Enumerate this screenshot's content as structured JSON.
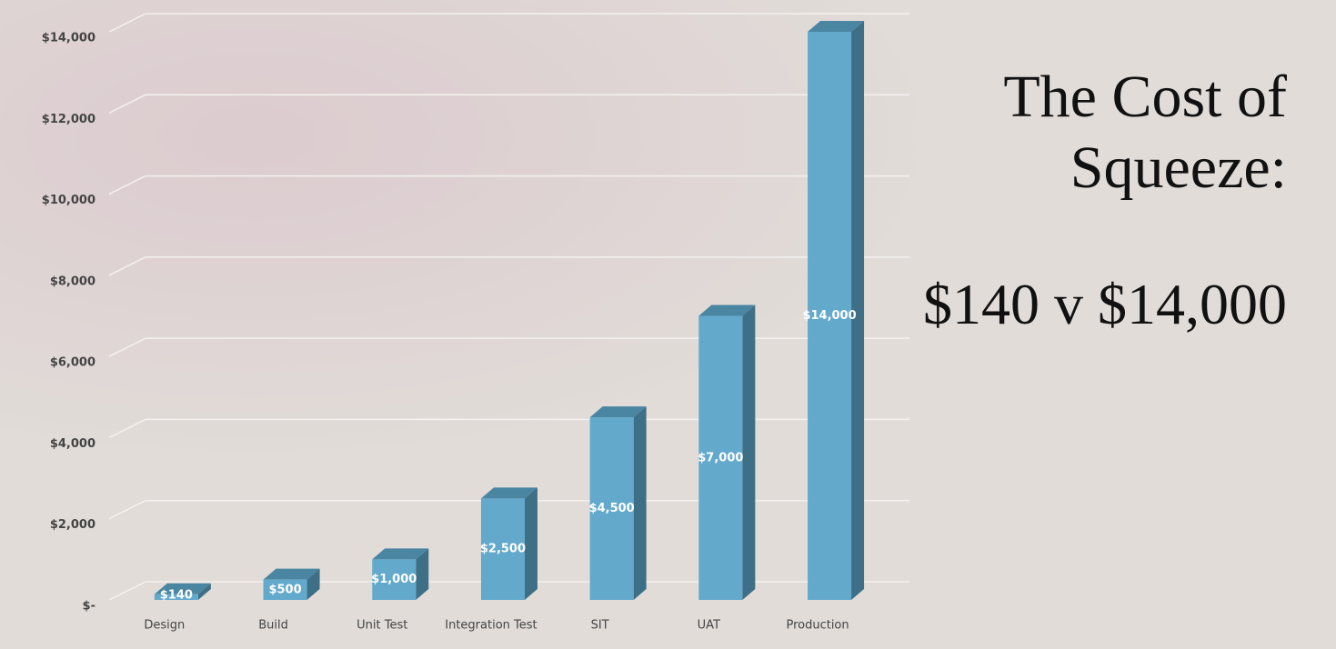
{
  "chart_data": {
    "type": "bar3d",
    "title": "The Cost of Squeeze:",
    "subtitle": "$140 v $14,000",
    "categories": [
      "Design",
      "Build",
      "Unit Test",
      "Integration Test",
      "SIT",
      "UAT",
      "Production"
    ],
    "values": [
      140,
      500,
      1000,
      2500,
      4500,
      7000,
      14000
    ],
    "value_labels": [
      "$140",
      "$500",
      "$1,000",
      "$2,500",
      "$4,500",
      "$7,000",
      "$14,000"
    ],
    "color": "#63a9cc",
    "ylim": [
      0,
      14000
    ],
    "yticks": [
      {
        "value": 0,
        "label": "$-"
      },
      {
        "value": 2000,
        "label": "$2,000"
      },
      {
        "value": 4000,
        "label": "$4,000"
      },
      {
        "value": 6000,
        "label": "$6,000"
      },
      {
        "value": 8000,
        "label": "$8,000"
      },
      {
        "value": 10000,
        "label": "$10,000"
      },
      {
        "value": 12000,
        "label": "$12,000"
      },
      {
        "value": 14000,
        "label": "$14,000"
      }
    ],
    "grid": true
  }
}
